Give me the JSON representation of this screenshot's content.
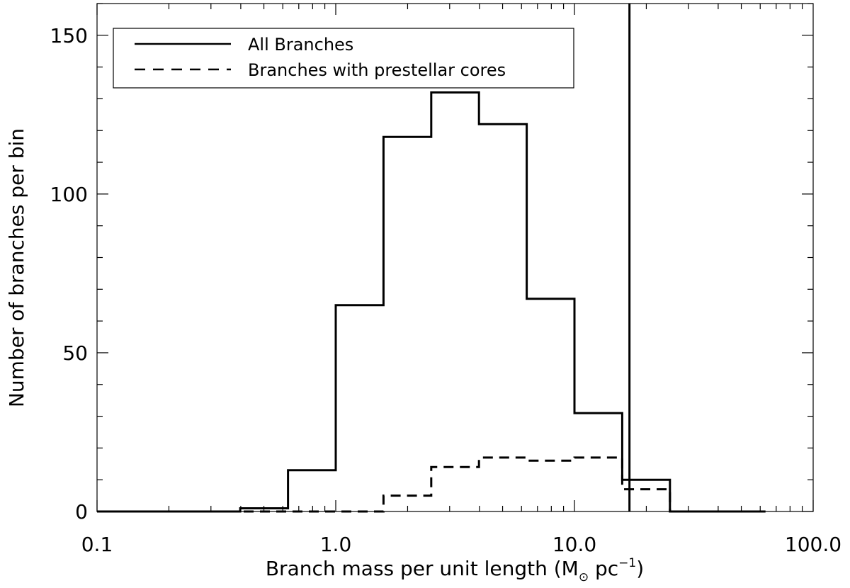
{
  "chart_data": {
    "type": "histogram",
    "x_scale": "log",
    "xlim": [
      0.1,
      100.0
    ],
    "ylim": [
      0,
      160
    ],
    "xlabel": {
      "prefix": "Branch mass per unit length (M",
      "sun_symbol": "⊙",
      "middle": " pc",
      "exponent": "−1",
      "suffix": ")"
    },
    "ylabel": "Number of branches per bin",
    "x_ticks": [
      "0.1",
      "1.0",
      "10.0",
      "100.0"
    ],
    "x_tick_values": [
      0.1,
      1.0,
      10.0,
      100.0
    ],
    "y_ticks": [
      "0",
      "50",
      "100",
      "150"
    ],
    "y_tick_values": [
      0,
      50,
      100,
      150
    ],
    "bin_edges": [
      0.1,
      0.158,
      0.251,
      0.398,
      0.631,
      1.0,
      1.585,
      2.512,
      3.981,
      6.31,
      10.0,
      15.85,
      25.12,
      39.81,
      63.1
    ],
    "series": [
      {
        "name": "All Branches",
        "style": "solid",
        "values": [
          0,
          0,
          0,
          1,
          13,
          65,
          118,
          132,
          122,
          67,
          31,
          10,
          0,
          0
        ]
      },
      {
        "name": "Branches with prestellar cores",
        "style": "dashed",
        "values": [
          0,
          0,
          0,
          0,
          0,
          0,
          5,
          14,
          17,
          16,
          17,
          7,
          0,
          0
        ]
      }
    ],
    "vertical_line": {
      "x": 17.0
    },
    "legend_position": "top-left",
    "colors": {
      "line": "#000000",
      "frame": "#000000"
    }
  }
}
